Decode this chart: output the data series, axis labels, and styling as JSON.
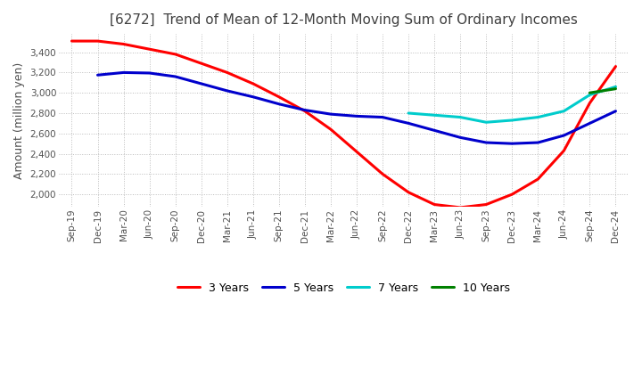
{
  "title": "[6272]  Trend of Mean of 12-Month Moving Sum of Ordinary Incomes",
  "ylabel": "Amount (million yen)",
  "title_color": "#404040",
  "background_color": "#ffffff",
  "grid_color": "#bbbbbb",
  "ylim": [
    1880,
    3580
  ],
  "yticks": [
    2000,
    2200,
    2400,
    2600,
    2800,
    3000,
    3200,
    3400
  ],
  "x_labels": [
    "Sep-19",
    "Dec-19",
    "Mar-20",
    "Jun-20",
    "Sep-20",
    "Dec-20",
    "Mar-21",
    "Jun-21",
    "Sep-21",
    "Dec-21",
    "Mar-22",
    "Jun-22",
    "Sep-22",
    "Dec-22",
    "Mar-23",
    "Jun-23",
    "Sep-23",
    "Dec-23",
    "Mar-24",
    "Jun-24",
    "Sep-24",
    "Dec-24"
  ],
  "series": {
    "3 Years": {
      "color": "#ff0000",
      "data": [
        3510,
        3510,
        3480,
        3430,
        3380,
        3290,
        3200,
        3090,
        2960,
        2820,
        2640,
        2420,
        2200,
        2020,
        1900,
        1870,
        1900,
        2000,
        2150,
        2430,
        2900,
        3260
      ]
    },
    "5 Years": {
      "color": "#0000cc",
      "data": [
        null,
        3175,
        3200,
        3195,
        3160,
        3090,
        3020,
        2960,
        2890,
        2830,
        2790,
        2770,
        2760,
        2700,
        2630,
        2560,
        2510,
        2500,
        2510,
        2580,
        2700,
        2820
      ]
    },
    "7 Years": {
      "color": "#00cccc",
      "data": [
        null,
        null,
        null,
        null,
        null,
        null,
        null,
        null,
        null,
        null,
        null,
        null,
        null,
        2800,
        2780,
        2760,
        2710,
        2730,
        2760,
        2820,
        2980,
        3060
      ]
    },
    "10 Years": {
      "color": "#008000",
      "data": [
        null,
        null,
        null,
        null,
        null,
        null,
        null,
        null,
        null,
        null,
        null,
        null,
        null,
        null,
        null,
        null,
        null,
        null,
        null,
        null,
        3000,
        3040
      ]
    }
  },
  "legend_order": [
    "3 Years",
    "5 Years",
    "7 Years",
    "10 Years"
  ],
  "title_fontsize": 11,
  "tick_fontsize": 7.5,
  "ylabel_fontsize": 9,
  "legend_fontsize": 9,
  "line_width": 2.2
}
